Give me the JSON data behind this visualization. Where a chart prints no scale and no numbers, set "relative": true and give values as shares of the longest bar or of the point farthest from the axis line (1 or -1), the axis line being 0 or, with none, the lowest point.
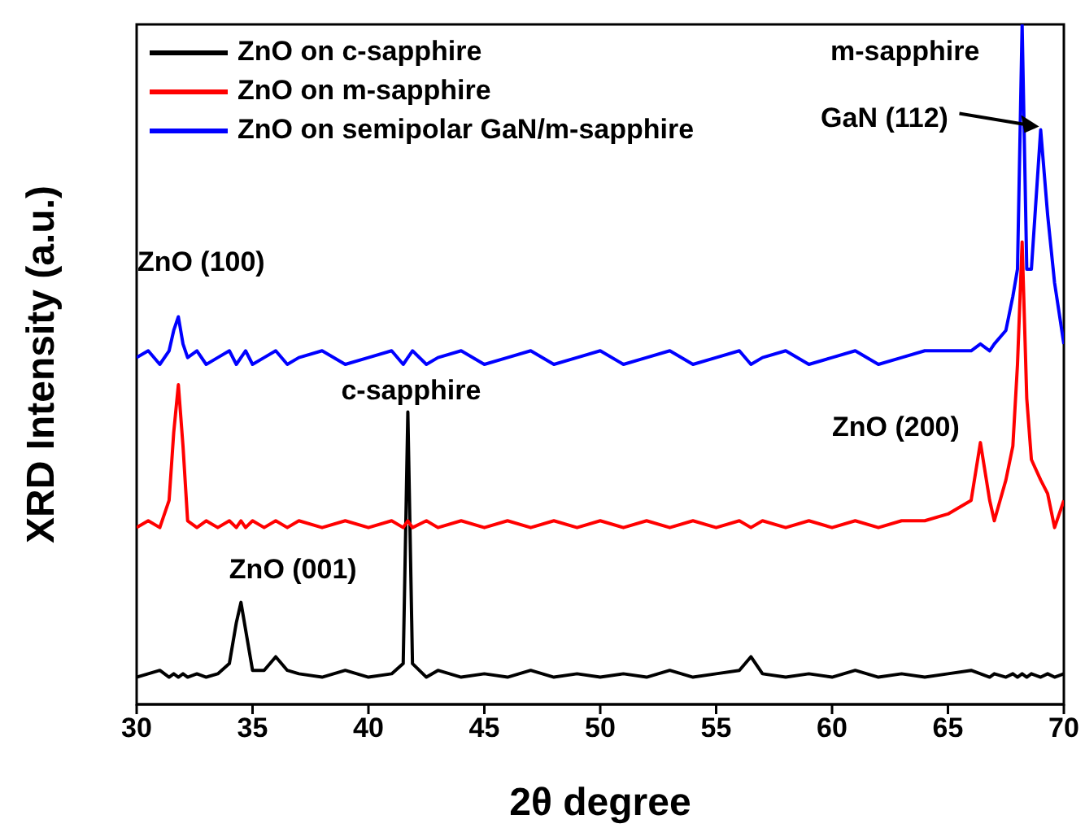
{
  "chart_data": {
    "type": "line",
    "xlabel": "2θ degree",
    "ylabel": "XRD Intensity (a.u.)",
    "relative": true,
    "legend": "top left",
    "tick_labels": "x",
    "xlim": [
      30,
      70
    ],
    "xticks": [
      30,
      35,
      40,
      45,
      50,
      55,
      60,
      65,
      70
    ],
    "x": [
      30,
      30.5,
      31,
      31.4,
      31.6,
      31.8,
      32,
      32.2,
      32.6,
      33,
      33.5,
      34,
      34.3,
      34.5,
      34.7,
      35,
      35.5,
      36,
      36.5,
      37,
      38,
      39,
      40,
      41,
      41.5,
      41.7,
      41.9,
      42.5,
      43,
      44,
      45,
      46,
      47,
      48,
      49,
      50,
      51,
      52,
      53,
      54,
      55,
      56,
      56.5,
      57,
      58,
      59,
      60,
      61,
      62,
      63,
      64,
      65,
      66,
      66.4,
      66.8,
      67,
      67.5,
      67.8,
      68,
      68.2,
      68.4,
      68.6,
      69,
      69.3,
      69.6,
      70
    ],
    "series": [
      {
        "name": "ZnO on c-sapphire",
        "color": "#000000",
        "values": [
          0.04,
          0.045,
          0.05,
          0.04,
          0.045,
          0.04,
          0.045,
          0.04,
          0.045,
          0.04,
          0.045,
          0.06,
          0.12,
          0.15,
          0.11,
          0.05,
          0.05,
          0.07,
          0.05,
          0.045,
          0.04,
          0.05,
          0.04,
          0.045,
          0.06,
          0.43,
          0.06,
          0.04,
          0.05,
          0.04,
          0.045,
          0.04,
          0.05,
          0.04,
          0.045,
          0.04,
          0.045,
          0.04,
          0.05,
          0.04,
          0.045,
          0.05,
          0.07,
          0.045,
          0.04,
          0.045,
          0.04,
          0.05,
          0.04,
          0.045,
          0.04,
          0.045,
          0.05,
          0.045,
          0.04,
          0.045,
          0.04,
          0.045,
          0.04,
          0.045,
          0.04,
          0.045,
          0.04,
          0.045,
          0.04,
          0.045
        ]
      },
      {
        "name": "ZnO on m-sapphire",
        "color": "#ff0000",
        "values": [
          0.26,
          0.27,
          0.26,
          0.3,
          0.4,
          0.47,
          0.38,
          0.27,
          0.26,
          0.27,
          0.26,
          0.27,
          0.26,
          0.27,
          0.26,
          0.27,
          0.26,
          0.27,
          0.26,
          0.27,
          0.26,
          0.27,
          0.26,
          0.27,
          0.26,
          0.27,
          0.26,
          0.27,
          0.26,
          0.27,
          0.26,
          0.27,
          0.26,
          0.27,
          0.26,
          0.27,
          0.26,
          0.27,
          0.26,
          0.27,
          0.26,
          0.27,
          0.26,
          0.27,
          0.26,
          0.27,
          0.26,
          0.27,
          0.26,
          0.27,
          0.27,
          0.28,
          0.3,
          0.385,
          0.3,
          0.27,
          0.33,
          0.38,
          0.5,
          0.68,
          0.45,
          0.36,
          0.33,
          0.31,
          0.26,
          0.3
        ]
      },
      {
        "name": "ZnO on semipolar GaN/m-sapphire",
        "color": "#0000ff",
        "values": [
          0.51,
          0.52,
          0.5,
          0.52,
          0.55,
          0.57,
          0.53,
          0.51,
          0.52,
          0.5,
          0.51,
          0.52,
          0.5,
          0.51,
          0.52,
          0.5,
          0.51,
          0.52,
          0.5,
          0.51,
          0.52,
          0.5,
          0.51,
          0.52,
          0.5,
          0.51,
          0.52,
          0.5,
          0.51,
          0.52,
          0.5,
          0.51,
          0.52,
          0.5,
          0.51,
          0.52,
          0.5,
          0.51,
          0.52,
          0.5,
          0.51,
          0.52,
          0.5,
          0.51,
          0.52,
          0.5,
          0.51,
          0.52,
          0.5,
          0.51,
          0.52,
          0.52,
          0.52,
          0.53,
          0.52,
          0.53,
          0.55,
          0.6,
          0.64,
          1,
          0.64,
          0.64,
          0.845,
          0.72,
          0.62,
          0.53
        ]
      }
    ],
    "annotations": [
      {
        "text": "ZnO (100)",
        "x": 31.8,
        "y": 0.57
      },
      {
        "text": "c-sapphire",
        "x": 41.7,
        "y": 0.43
      },
      {
        "text": "ZnO (001)",
        "x": 34.5,
        "y": 0.15
      },
      {
        "text": "ZnO (200)",
        "x": 66.4,
        "y": 0.385
      },
      {
        "text": "m-sapphire",
        "x": 68.2,
        "y": 1
      },
      {
        "text": "GaN (112)",
        "x": 69,
        "y": 0.845
      }
    ]
  }
}
